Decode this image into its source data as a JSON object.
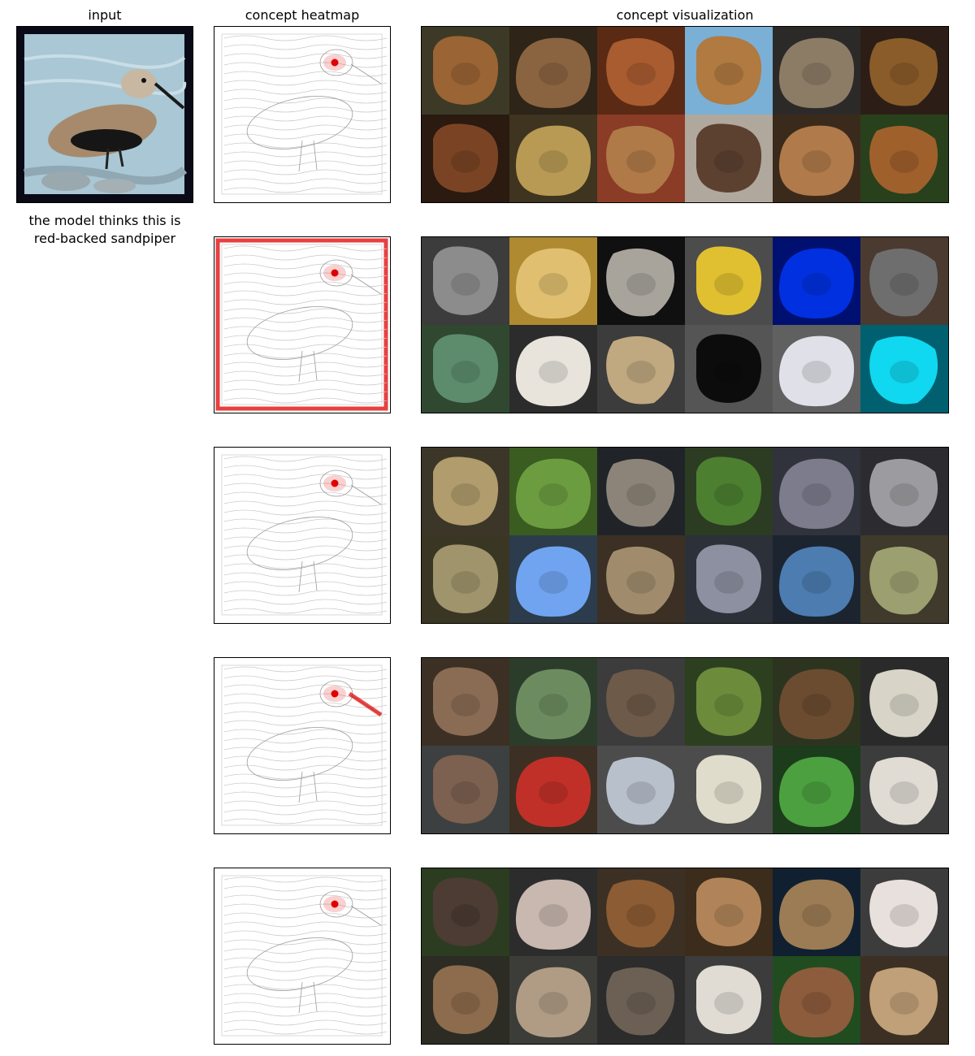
{
  "headers": {
    "input": "input",
    "heatmap": "concept heatmap",
    "visualization": "concept visualization"
  },
  "caption": "the model thinks this is\nred-backed sandpiper",
  "colors": {
    "heat": "#e00000",
    "frame": "#000000"
  },
  "concepts": [
    {
      "heat_focus": "eye",
      "tiles": [
        {
          "bg": "#3c3a26",
          "fg": "#9a6434"
        },
        {
          "bg": "#2e2418",
          "fg": "#8a6440"
        },
        {
          "bg": "#5a2a14",
          "fg": "#a85c30"
        },
        {
          "bg": "#7ab0d6",
          "fg": "#b07a40"
        },
        {
          "bg": "#2c2a28",
          "fg": "#8c7c66"
        },
        {
          "bg": "#2c1e16",
          "fg": "#8a5c2a"
        },
        {
          "bg": "#2a1a10",
          "fg": "#7a4424"
        },
        {
          "bg": "#3e3420",
          "fg": "#b89a54"
        },
        {
          "bg": "#8a3c26",
          "fg": "#b07a48"
        },
        {
          "bg": "#b0a89c",
          "fg": "#5c4030"
        },
        {
          "bg": "#3a2a1c",
          "fg": "#b07a4a"
        },
        {
          "bg": "#28401c",
          "fg": "#a0602c"
        }
      ]
    },
    {
      "heat_focus": "border",
      "tiles": [
        {
          "bg": "#3c3c3c",
          "fg": "#8c8c8c"
        },
        {
          "bg": "#b08a30",
          "fg": "#e0c070"
        },
        {
          "bg": "#101010",
          "fg": "#a8a49c"
        },
        {
          "bg": "#4c4c4c",
          "fg": "#e0c030"
        },
        {
          "bg": "#001070",
          "fg": "#0030e0"
        },
        {
          "bg": "#4a3a30",
          "fg": "#6e6e6e"
        },
        {
          "bg": "#304830",
          "fg": "#5c8c6c"
        },
        {
          "bg": "#2c2c2c",
          "fg": "#e8e4dc"
        },
        {
          "bg": "#3c3c3c",
          "fg": "#c0a880"
        },
        {
          "bg": "#555555",
          "fg": "#0c0c0c"
        },
        {
          "bg": "#606060",
          "fg": "#e0e0e8"
        },
        {
          "bg": "#006070",
          "fg": "#10d8f0"
        }
      ]
    },
    {
      "heat_focus": "eye",
      "tiles": [
        {
          "bg": "#3c3628",
          "fg": "#b09c6c"
        },
        {
          "bg": "#3a5c20",
          "fg": "#6c9c40"
        },
        {
          "bg": "#202428",
          "fg": "#8c8478"
        },
        {
          "bg": "#2c3c22",
          "fg": "#4c8030"
        },
        {
          "bg": "#30323c",
          "fg": "#7c7c8c"
        },
        {
          "bg": "#2c2c30",
          "fg": "#9c9ca0"
        },
        {
          "bg": "#3a3624",
          "fg": "#a0946c"
        },
        {
          "bg": "#2c3c4c",
          "fg": "#70a4f0"
        },
        {
          "bg": "#3c3024",
          "fg": "#a08c6c"
        },
        {
          "bg": "#2c3038",
          "fg": "#8c90a0"
        },
        {
          "bg": "#1c2430",
          "fg": "#4c7cb0"
        },
        {
          "bg": "#403a2c",
          "fg": "#9ca070"
        }
      ]
    },
    {
      "heat_focus": "beak",
      "tiles": [
        {
          "bg": "#3c3024",
          "fg": "#8a6c54"
        },
        {
          "bg": "#2c3c2a",
          "fg": "#6c8c60"
        },
        {
          "bg": "#3c3c3c",
          "fg": "#6e5a48"
        },
        {
          "bg": "#2c4020",
          "fg": "#6c8c3c"
        },
        {
          "bg": "#2c3420",
          "fg": "#6c4c30"
        },
        {
          "bg": "#2a2a2a",
          "fg": "#d8d4c8"
        },
        {
          "bg": "#3c4040",
          "fg": "#7c6050"
        },
        {
          "bg": "#3c3024",
          "fg": "#c03028"
        },
        {
          "bg": "#4c4c4c",
          "fg": "#b8c0cc"
        },
        {
          "bg": "#4c4c4c",
          "fg": "#e0dccc"
        },
        {
          "bg": "#1c3c1c",
          "fg": "#4ca040"
        },
        {
          "bg": "#3c3c3c",
          "fg": "#e0dcd4"
        }
      ]
    },
    {
      "heat_focus": "eye",
      "tiles": [
        {
          "bg": "#2c3c20",
          "fg": "#4c3c34"
        },
        {
          "bg": "#2c2c2c",
          "fg": "#c8b8b0"
        },
        {
          "bg": "#3c3024",
          "fg": "#8c5c34"
        },
        {
          "bg": "#3c2c1c",
          "fg": "#b08458"
        },
        {
          "bg": "#102030",
          "fg": "#9c7c54"
        },
        {
          "bg": "#3c3c3c",
          "fg": "#e8e0dc"
        },
        {
          "bg": "#2c2c24",
          "fg": "#8c6c4c"
        },
        {
          "bg": "#3c3c38",
          "fg": "#b09c84"
        },
        {
          "bg": "#2c2c2c",
          "fg": "#6c6054"
        },
        {
          "bg": "#3c3c3c",
          "fg": "#e0dcd4"
        },
        {
          "bg": "#204c20",
          "fg": "#8c5c3c"
        },
        {
          "bg": "#3c3024",
          "fg": "#c0a078"
        }
      ]
    }
  ]
}
